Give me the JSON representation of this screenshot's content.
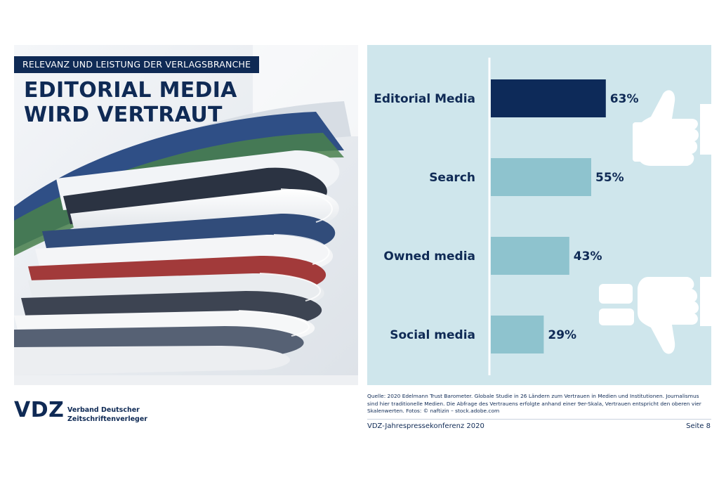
{
  "slide": {
    "kicker": "RELEVANZ UND LEISTUNG DER VERLAGSBRANCHE",
    "headline_lines": [
      "EDITORIAL MEDIA",
      "WIRD VERTRAUT"
    ]
  },
  "photo": {
    "subject": "stack-of-magazines"
  },
  "colors": {
    "highlight_bar": "#0d2a59",
    "other_bars": "#8ec3ce",
    "chart_background": "#cfe6ec",
    "brand_text": "#0f2a55"
  },
  "chart_data": {
    "type": "bar",
    "orientation": "horizontal",
    "categories": [
      "Editorial Media",
      "Search",
      "Owned media",
      "Social media"
    ],
    "values": [
      63,
      55,
      43,
      29
    ],
    "value_labels": [
      "63%",
      "55%",
      "43%",
      "29%"
    ],
    "highlighted_category": "Editorial Media",
    "xlim": [
      0,
      100
    ],
    "grid": false,
    "decorations": [
      "thumbs-up-icon",
      "thumbs-down-icon"
    ]
  },
  "footer": {
    "logo": "VDZ",
    "org_lines": [
      "Verband Deutscher",
      "Zeitschriftenverleger"
    ],
    "source_lines": [
      "Quelle: 2020 Edelmann Trust Barometer. Globale Studie in 26 Ländern zum Vertrauen in Medien und Institutionen. Journalismus",
      "sind hier traditionelle Medien. Die Abfrage des Vertrauens erfolgte anhand einer 9er-Skala, Vertrauen entspricht den oberen vier",
      "Skalenwerten. Fotos: © naftizin – stock.adobe.com"
    ],
    "event": "VDZ-Jahrespressekonferenz 2020",
    "page": "Seite 8"
  }
}
